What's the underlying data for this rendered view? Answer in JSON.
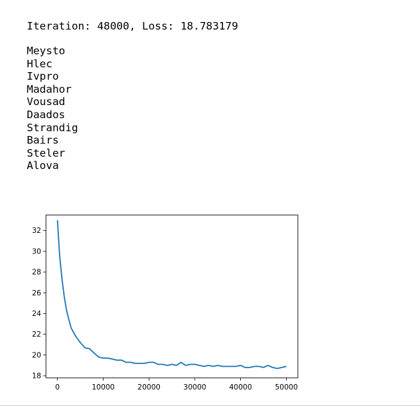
{
  "output": {
    "iteration_text": "Iteration: 48000, Loss: 18.783179",
    "names": [
      "Meysto",
      "Hlec",
      "Ivpro",
      "Madahor",
      "Vousad",
      "Daados",
      "Strandig",
      "Bairs",
      "Steler",
      "Alova"
    ]
  },
  "chart_data": {
    "type": "line",
    "title": "",
    "xlabel": "",
    "ylabel": "",
    "xlim": [
      -2500,
      52500
    ],
    "ylim": [
      17.8,
      33.5
    ],
    "xticks": [
      0,
      10000,
      20000,
      30000,
      40000,
      50000
    ],
    "xtick_labels": [
      "0",
      "10000",
      "20000",
      "30000",
      "40000",
      "50000"
    ],
    "yticks": [
      18,
      20,
      22,
      24,
      26,
      28,
      30,
      32
    ],
    "ytick_labels": [
      "18",
      "20",
      "22",
      "24",
      "26",
      "28",
      "30",
      "32"
    ],
    "grid": false,
    "series": [
      {
        "color": "#1f77b4",
        "x": [
          0,
          500,
          1000,
          1500,
          2000,
          2500,
          3000,
          3500,
          4000,
          4500,
          5000,
          6000,
          7000,
          8000,
          9000,
          10000,
          11000,
          12000,
          13000,
          14000,
          15000,
          16000,
          17000,
          18000,
          19000,
          20000,
          21000,
          22000,
          23000,
          24000,
          25000,
          26000,
          27000,
          28000,
          29000,
          30000,
          31000,
          32000,
          33000,
          34000,
          35000,
          36000,
          37000,
          38000,
          39000,
          40000,
          41000,
          42000,
          43000,
          44000,
          45000,
          46000,
          47000,
          48000,
          49000,
          50000
        ],
        "y": [
          33.0,
          29.5,
          27.3,
          25.6,
          24.3,
          23.4,
          22.6,
          22.2,
          21.8,
          21.5,
          21.2,
          20.7,
          20.6,
          20.2,
          19.8,
          19.7,
          19.7,
          19.6,
          19.5,
          19.5,
          19.3,
          19.3,
          19.2,
          19.2,
          19.2,
          19.3,
          19.3,
          19.1,
          19.1,
          19.0,
          19.1,
          19.0,
          19.3,
          19.0,
          19.1,
          19.1,
          19.0,
          18.9,
          19.0,
          18.9,
          19.0,
          18.9,
          18.9,
          18.9,
          18.9,
          19.0,
          18.8,
          18.8,
          18.9,
          18.9,
          18.8,
          19.0,
          18.8,
          18.7,
          18.8,
          18.9
        ]
      }
    ]
  }
}
